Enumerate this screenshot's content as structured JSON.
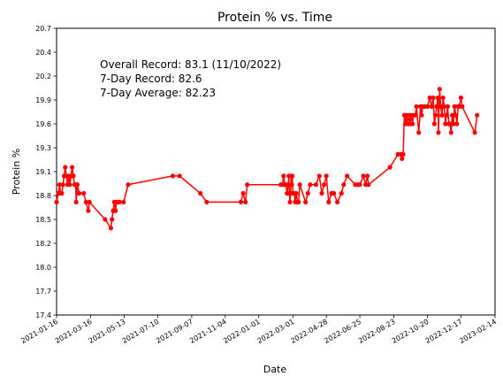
{
  "chart_data": {
    "type": "line",
    "title": "Protein % vs. Time",
    "xlabel": "Date",
    "ylabel": "Protein %",
    "xlim": [
      "2021-01-16",
      "2023-02-14"
    ],
    "ylim": [
      17.4,
      20.7
    ],
    "x_ticks": [
      "2021-01-16",
      "2021-03-16",
      "2021-05-13",
      "2021-07-10",
      "2021-09-07",
      "2021-11-04",
      "2022-01-01",
      "2022-03-01",
      "2022-04-28",
      "2022-06-25",
      "2022-08-23",
      "2022-10-20",
      "2022-12-17",
      "2023-02-14"
    ],
    "y_ticks": [
      "17.4",
      "17.7",
      "18.0",
      "18.2",
      "18.5",
      "18.8",
      "19.1",
      "19.3",
      "19.6",
      "19.9",
      "20.2",
      "20.4",
      "20.7"
    ],
    "annotations": [
      "Overall Record: 83.1 (11/10/2022)",
      "7-Day Record: 82.6",
      "7-Day Average: 82.23"
    ],
    "grid": false,
    "series": [
      {
        "color": "#ff0000",
        "marker": "circle",
        "points": [
          {
            "x": "2021-01-16",
            "y": 18.7
          },
          {
            "x": "2021-01-19",
            "y": 18.8
          },
          {
            "x": "2021-01-21",
            "y": 18.9
          },
          {
            "x": "2021-01-23",
            "y": 18.8
          },
          {
            "x": "2021-01-25",
            "y": 18.8
          },
          {
            "x": "2021-01-27",
            "y": 18.9
          },
          {
            "x": "2021-01-29",
            "y": 19.0
          },
          {
            "x": "2021-01-31",
            "y": 19.1
          },
          {
            "x": "2021-02-02",
            "y": 19.0
          },
          {
            "x": "2021-02-04",
            "y": 18.9
          },
          {
            "x": "2021-02-06",
            "y": 19.0
          },
          {
            "x": "2021-02-08",
            "y": 18.9
          },
          {
            "x": "2021-02-10",
            "y": 19.0
          },
          {
            "x": "2021-02-12",
            "y": 19.1
          },
          {
            "x": "2021-02-14",
            "y": 19.0
          },
          {
            "x": "2021-02-16",
            "y": 18.9
          },
          {
            "x": "2021-02-18",
            "y": 18.9
          },
          {
            "x": "2021-02-19",
            "y": 18.7
          },
          {
            "x": "2021-02-21",
            "y": 18.9
          },
          {
            "x": "2021-02-24",
            "y": 18.8
          },
          {
            "x": "2021-03-04",
            "y": 18.8
          },
          {
            "x": "2021-03-08",
            "y": 18.7
          },
          {
            "x": "2021-03-12",
            "y": 18.6
          },
          {
            "x": "2021-03-14",
            "y": 18.7
          },
          {
            "x": "2021-04-10",
            "y": 18.5
          },
          {
            "x": "2021-04-20",
            "y": 18.4
          },
          {
            "x": "2021-04-22",
            "y": 18.5
          },
          {
            "x": "2021-04-24",
            "y": 18.6
          },
          {
            "x": "2021-04-26",
            "y": 18.7
          },
          {
            "x": "2021-04-28",
            "y": 18.6
          },
          {
            "x": "2021-04-30",
            "y": 18.7
          },
          {
            "x": "2021-05-02",
            "y": 18.7
          },
          {
            "x": "2021-05-05",
            "y": 18.7
          },
          {
            "x": "2021-05-12",
            "y": 18.7
          },
          {
            "x": "2021-05-20",
            "y": 18.9
          },
          {
            "x": "2021-08-05",
            "y": 19.0
          },
          {
            "x": "2021-08-17",
            "y": 19.0
          },
          {
            "x": "2021-09-22",
            "y": 18.8
          },
          {
            "x": "2021-10-03",
            "y": 18.7
          },
          {
            "x": "2021-12-01",
            "y": 18.7
          },
          {
            "x": "2021-12-05",
            "y": 18.8
          },
          {
            "x": "2021-12-09",
            "y": 18.7
          },
          {
            "x": "2021-12-12",
            "y": 18.9
          },
          {
            "x": "2022-02-08",
            "y": 18.9
          },
          {
            "x": "2022-02-11",
            "y": 18.9
          },
          {
            "x": "2022-02-13",
            "y": 19.0
          },
          {
            "x": "2022-02-15",
            "y": 18.9
          },
          {
            "x": "2022-02-17",
            "y": 18.9
          },
          {
            "x": "2022-02-19",
            "y": 18.8
          },
          {
            "x": "2022-02-21",
            "y": 18.9
          },
          {
            "x": "2022-02-22",
            "y": 19.0
          },
          {
            "x": "2022-02-23",
            "y": 18.8
          },
          {
            "x": "2022-02-24",
            "y": 18.7
          },
          {
            "x": "2022-02-25",
            "y": 18.8
          },
          {
            "x": "2022-02-26",
            "y": 19.0
          },
          {
            "x": "2022-02-27",
            "y": 18.9
          },
          {
            "x": "2022-02-28",
            "y": 19.0
          },
          {
            "x": "2022-03-01",
            "y": 18.8
          },
          {
            "x": "2022-03-03",
            "y": 18.8
          },
          {
            "x": "2022-03-05",
            "y": 18.7
          },
          {
            "x": "2022-03-07",
            "y": 18.8
          },
          {
            "x": "2022-03-09",
            "y": 18.7
          },
          {
            "x": "2022-03-11",
            "y": 18.7
          },
          {
            "x": "2022-03-13",
            "y": 18.9
          },
          {
            "x": "2022-03-23",
            "y": 18.7
          },
          {
            "x": "2022-03-27",
            "y": 18.8
          },
          {
            "x": "2022-03-31",
            "y": 18.9
          },
          {
            "x": "2022-04-10",
            "y": 18.9
          },
          {
            "x": "2022-04-16",
            "y": 19.0
          },
          {
            "x": "2022-04-20",
            "y": 18.8
          },
          {
            "x": "2022-04-24",
            "y": 18.9
          },
          {
            "x": "2022-04-28",
            "y": 19.0
          },
          {
            "x": "2022-05-02",
            "y": 18.7
          },
          {
            "x": "2022-05-07",
            "y": 18.8
          },
          {
            "x": "2022-05-11",
            "y": 18.8
          },
          {
            "x": "2022-05-17",
            "y": 18.7
          },
          {
            "x": "2022-05-24",
            "y": 18.8
          },
          {
            "x": "2022-05-28",
            "y": 18.9
          },
          {
            "x": "2022-06-03",
            "y": 19.0
          },
          {
            "x": "2022-06-17",
            "y": 18.9
          },
          {
            "x": "2022-06-22",
            "y": 18.9
          },
          {
            "x": "2022-06-25",
            "y": 18.9
          },
          {
            "x": "2022-07-01",
            "y": 19.0
          },
          {
            "x": "2022-07-05",
            "y": 18.9
          },
          {
            "x": "2022-07-08",
            "y": 19.0
          },
          {
            "x": "2022-07-10",
            "y": 18.9
          },
          {
            "x": "2022-08-16",
            "y": 19.1
          },
          {
            "x": "2022-08-30",
            "y": 19.25
          },
          {
            "x": "2022-09-04",
            "y": 19.25
          },
          {
            "x": "2022-09-06",
            "y": 19.2
          },
          {
            "x": "2022-09-08",
            "y": 19.25
          },
          {
            "x": "2022-09-10",
            "y": 19.7
          },
          {
            "x": "2022-09-12",
            "y": 19.6
          },
          {
            "x": "2022-09-14",
            "y": 19.7
          },
          {
            "x": "2022-09-16",
            "y": 19.6
          },
          {
            "x": "2022-09-18",
            "y": 19.7
          },
          {
            "x": "2022-09-20",
            "y": 19.6
          },
          {
            "x": "2022-09-22",
            "y": 19.7
          },
          {
            "x": "2022-09-24",
            "y": 19.6
          },
          {
            "x": "2022-09-26",
            "y": 19.7
          },
          {
            "x": "2022-09-29",
            "y": 19.7
          },
          {
            "x": "2022-10-01",
            "y": 19.8
          },
          {
            "x": "2022-10-05",
            "y": 19.5
          },
          {
            "x": "2022-10-08",
            "y": 19.8
          },
          {
            "x": "2022-10-10",
            "y": 19.7
          },
          {
            "x": "2022-10-12",
            "y": 19.8
          },
          {
            "x": "2022-10-15",
            "y": 19.8
          },
          {
            "x": "2022-10-20",
            "y": 19.8
          },
          {
            "x": "2022-10-24",
            "y": 19.9
          },
          {
            "x": "2022-10-27",
            "y": 19.8
          },
          {
            "x": "2022-10-30",
            "y": 19.9
          },
          {
            "x": "2022-11-01",
            "y": 19.6
          },
          {
            "x": "2022-11-03",
            "y": 19.7
          },
          {
            "x": "2022-11-05",
            "y": 19.8
          },
          {
            "x": "2022-11-07",
            "y": 19.9
          },
          {
            "x": "2022-11-08",
            "y": 19.5
          },
          {
            "x": "2022-11-10",
            "y": 20.0
          },
          {
            "x": "2022-11-12",
            "y": 19.8
          },
          {
            "x": "2022-11-14",
            "y": 19.7
          },
          {
            "x": "2022-11-16",
            "y": 19.9
          },
          {
            "x": "2022-11-18",
            "y": 19.8
          },
          {
            "x": "2022-11-20",
            "y": 19.6
          },
          {
            "x": "2022-11-22",
            "y": 19.7
          },
          {
            "x": "2022-11-24",
            "y": 19.8
          },
          {
            "x": "2022-11-26",
            "y": 19.6
          },
          {
            "x": "2022-11-28",
            "y": 19.6
          },
          {
            "x": "2022-11-30",
            "y": 19.5
          },
          {
            "x": "2022-12-02",
            "y": 19.7
          },
          {
            "x": "2022-12-04",
            "y": 19.6
          },
          {
            "x": "2022-12-06",
            "y": 19.8
          },
          {
            "x": "2022-12-08",
            "y": 19.7
          },
          {
            "x": "2022-12-10",
            "y": 19.6
          },
          {
            "x": "2022-12-12",
            "y": 19.8
          },
          {
            "x": "2022-12-14",
            "y": 19.8
          },
          {
            "x": "2022-12-17",
            "y": 19.9
          },
          {
            "x": "2022-12-19",
            "y": 19.8
          },
          {
            "x": "2023-01-10",
            "y": 19.5
          },
          {
            "x": "2023-01-14",
            "y": 19.7
          }
        ]
      }
    ]
  }
}
